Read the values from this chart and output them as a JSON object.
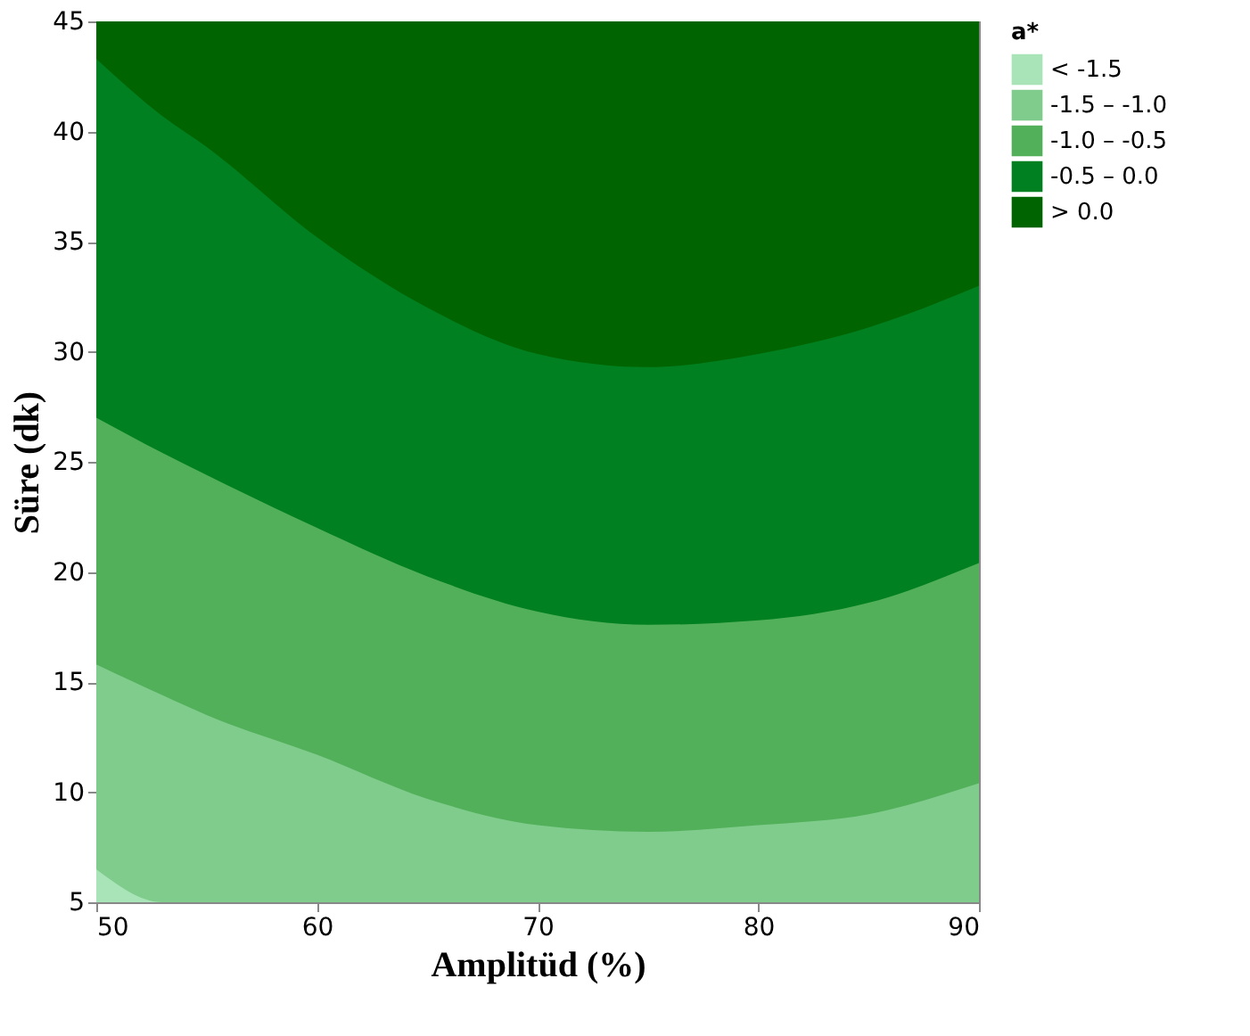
{
  "chart_data": {
    "type": "area",
    "xlabel": "Amplitüd (%)",
    "ylabel": "Süre (dk)",
    "legend_title": "a*",
    "legend": "top right",
    "x": [
      50,
      53,
      55,
      60,
      65,
      70,
      75,
      80,
      85,
      90
    ],
    "series": [
      {
        "name": "<   -1.5",
        "color": "#a8e4b8",
        "values": [
          6.5,
          5,
          5,
          5,
          5,
          5,
          5,
          5,
          5,
          5
        ]
      },
      {
        "name": "-1.5  –  -1.0",
        "color": "#80cc8c",
        "values": [
          15.8,
          14.4,
          13.5,
          11.7,
          9.7,
          8.5,
          8.2,
          8.5,
          9.0,
          10.4
        ]
      },
      {
        "name": "-1.0  –  -0.5",
        "color": "#52b05a",
        "values": [
          27.0,
          25.4,
          24.4,
          22.0,
          19.8,
          18.2,
          17.6,
          17.8,
          18.6,
          20.4
        ]
      },
      {
        "name": "-0.5  –  0.0",
        "color": "#008020",
        "values": [
          43.3,
          40.7,
          39.3,
          35.2,
          32.0,
          29.9,
          29.3,
          29.9,
          31.1,
          33.0
        ]
      },
      {
        "name": ">   0.0",
        "color": "#006400",
        "values": [
          45,
          45,
          45,
          45,
          45,
          45,
          45,
          45,
          45,
          45
        ]
      }
    ],
    "xlim": [
      50,
      90
    ],
    "xticks": [
      50,
      60,
      70,
      80,
      90
    ],
    "ylim": [
      5,
      45
    ],
    "yticks": [
      5,
      10,
      15,
      20,
      25,
      30,
      35,
      40,
      45
    ],
    "grid": false
  }
}
